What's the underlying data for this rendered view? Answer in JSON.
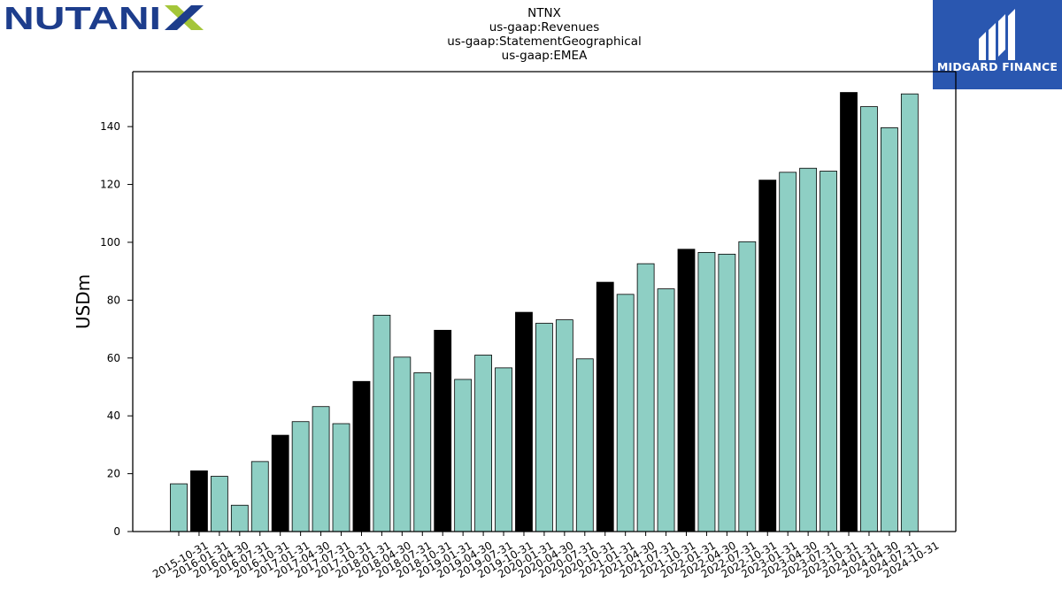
{
  "logos": {
    "left_text": "NUTANIX",
    "right_text": "MIDGARD FINANCE"
  },
  "colors": {
    "bar_normal": "#8ecfc4",
    "bar_highlight": "#000000",
    "bar_edge": "#000000",
    "logo_left_navy": "#1d3d8c",
    "logo_left_green": "#a4c639",
    "logo_right_bg": "#2a57b0"
  },
  "title_lines": [
    "NTNX",
    "us-gaap:Revenues",
    "us-gaap:StatementGeographical",
    "us-gaap:EMEA"
  ],
  "chart_data": {
    "type": "bar",
    "ylabel": "USDm",
    "xlabel": "",
    "ylim": [
      0,
      159
    ],
    "yticks": [
      0,
      20,
      40,
      60,
      80,
      100,
      120,
      140
    ],
    "grid": false,
    "legend": "none",
    "categories": [
      "2015-10-31",
      "2016-01-31",
      "2016-04-30",
      "2016-07-31",
      "2016-10-31",
      "2017-01-31",
      "2017-04-30",
      "2017-07-31",
      "2017-10-31",
      "2018-01-31",
      "2018-04-30",
      "2018-07-31",
      "2018-10-31",
      "2019-01-31",
      "2019-04-30",
      "2019-07-31",
      "2019-10-31",
      "2020-01-31",
      "2020-04-30",
      "2020-07-31",
      "2020-10-31",
      "2021-01-31",
      "2021-04-30",
      "2021-07-31",
      "2021-10-31",
      "2022-01-31",
      "2022-04-30",
      "2022-07-31",
      "2022-10-31",
      "2023-01-31",
      "2023-04-30",
      "2023-07-31",
      "2023-10-31",
      "2024-01-31",
      "2024-04-30",
      "2024-07-31",
      "2024-10-31"
    ],
    "values": [
      16.5,
      21.0,
      19.1,
      9.1,
      24.2,
      33.3,
      38.0,
      43.2,
      37.3,
      51.9,
      74.8,
      60.3,
      54.9,
      69.6,
      52.6,
      61.0,
      56.6,
      75.8,
      72.0,
      73.2,
      59.7,
      86.2,
      82.0,
      92.6,
      83.9,
      97.6,
      96.5,
      95.9,
      100.2,
      121.5,
      124.2,
      125.6,
      124.6,
      151.8,
      146.9,
      139.6,
      151.3
    ],
    "highlight": [
      false,
      true,
      false,
      false,
      false,
      true,
      false,
      false,
      false,
      true,
      false,
      false,
      false,
      true,
      false,
      false,
      false,
      true,
      false,
      false,
      false,
      true,
      false,
      false,
      false,
      true,
      false,
      false,
      false,
      true,
      false,
      false,
      false,
      true,
      false,
      false,
      false
    ]
  }
}
